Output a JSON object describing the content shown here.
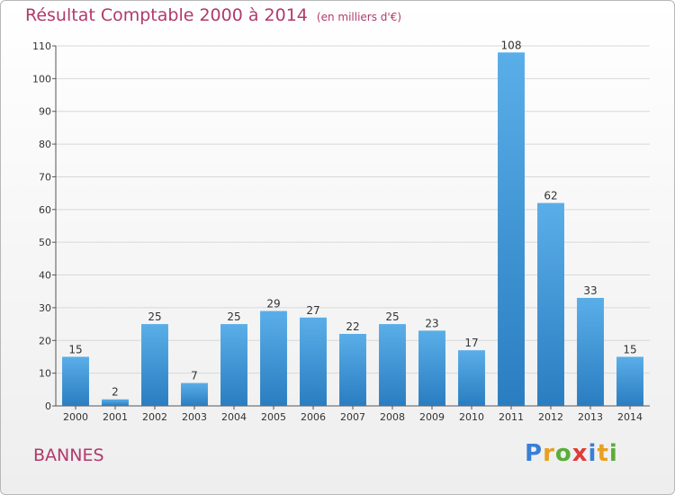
{
  "title": "Résultat Comptable 2000 à 2014",
  "subtitle": "(en milliers d'€)",
  "commune": "BANNES",
  "logo": {
    "letters": [
      "P",
      "r",
      "o",
      "x",
      "i",
      "t",
      "i"
    ],
    "colors": [
      "#3a7fd5",
      "#e8a020",
      "#5aae3a",
      "#e03a3a",
      "#3a7fd5",
      "#e8a020",
      "#5aae3a"
    ]
  },
  "colors": {
    "title": "#b03a6a",
    "bar_light": "#5aaee8",
    "bar_dark": "#2a7dc0",
    "axis": "#555555",
    "grid": "#d8d8d8"
  },
  "chart_data": {
    "type": "bar",
    "categories": [
      "2000",
      "2001",
      "2002",
      "2003",
      "2004",
      "2005",
      "2006",
      "2007",
      "2008",
      "2009",
      "2010",
      "2011",
      "2012",
      "2013",
      "2014"
    ],
    "values": [
      15,
      2,
      25,
      7,
      25,
      29,
      27,
      22,
      25,
      23,
      17,
      108,
      62,
      33,
      15
    ],
    "ylim": [
      0,
      110
    ],
    "yticks": [
      0,
      10,
      20,
      30,
      40,
      50,
      60,
      70,
      80,
      90,
      100,
      110
    ],
    "grid": true
  }
}
